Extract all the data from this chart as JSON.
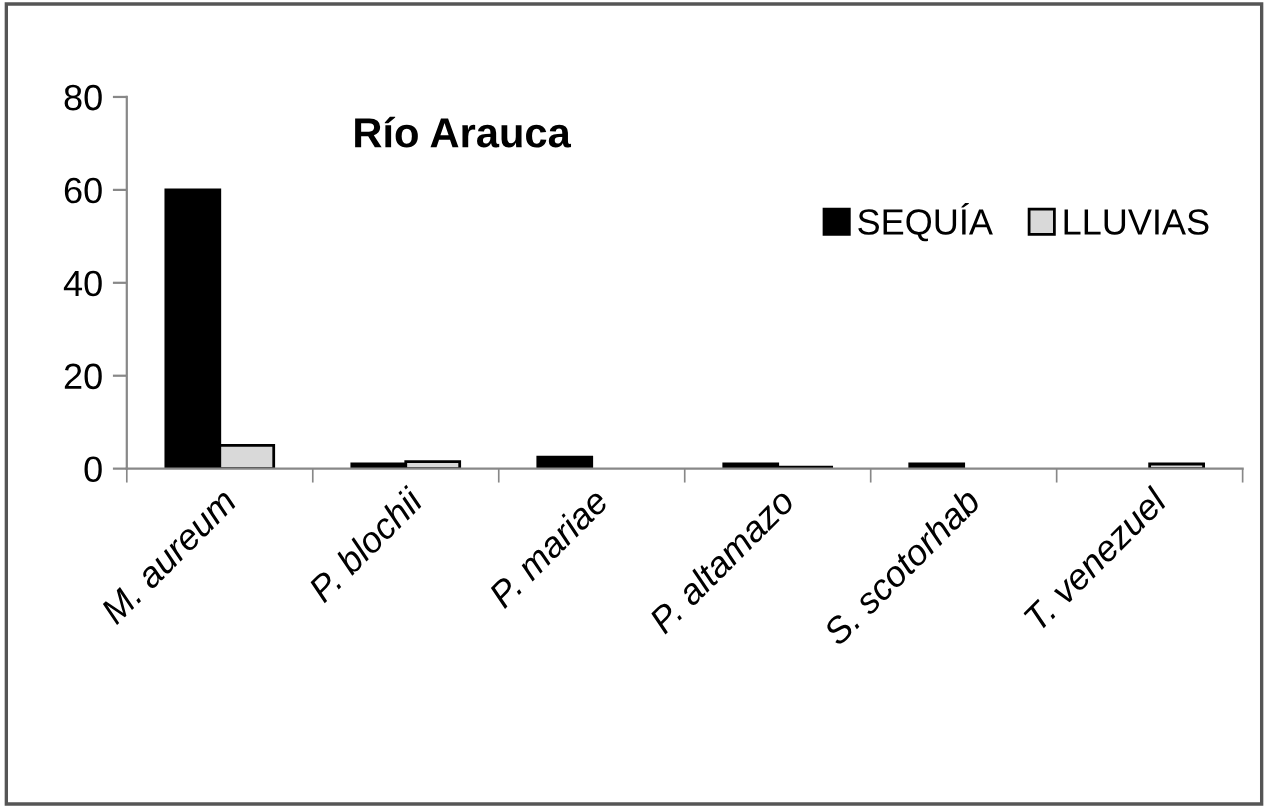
{
  "chart_data": {
    "type": "bar",
    "title": "Río Arauca",
    "categories": [
      "M. aureum",
      "P. blochii",
      "P. mariae",
      "P. altamazo",
      "S. scotorhab",
      "T. venezuel"
    ],
    "series": [
      {
        "name": "SEQUÍA",
        "color": "#000000",
        "values": [
          60,
          1,
          2.5,
          1,
          1,
          null
        ]
      },
      {
        "name": "LLUVIAS",
        "color": "#d9d9d9",
        "values": [
          5,
          1.5,
          null,
          0.3,
          null,
          1
        ]
      }
    ],
    "ylim": [
      0,
      80
    ],
    "yticks": [
      0,
      20,
      40,
      60,
      80
    ],
    "grid": false,
    "legend": "top right"
  }
}
